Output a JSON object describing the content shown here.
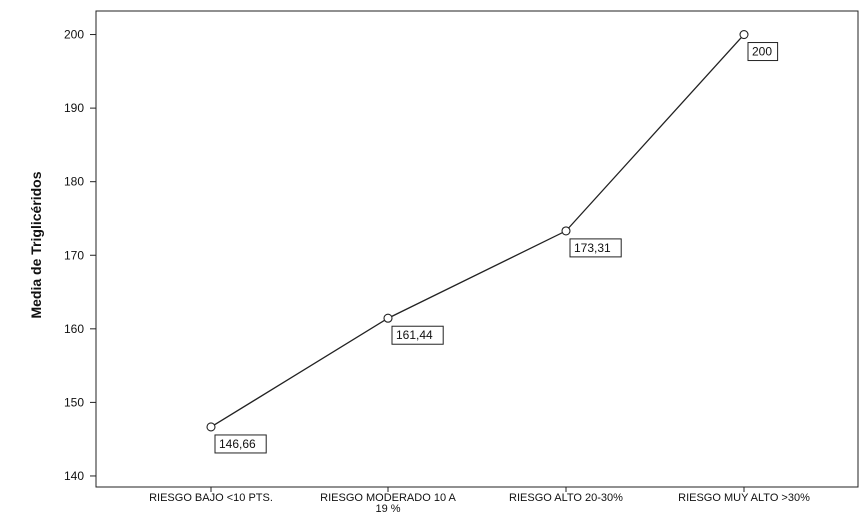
{
  "chart_data": {
    "type": "line",
    "title": "",
    "xlabel": "",
    "ylabel": "Media de Triglicéridos",
    "categories": [
      [
        "RIESGO BAJO <10 PTS."
      ],
      [
        "RIESGO MODERADO 10 A",
        "19 %"
      ],
      [
        "RIESGO ALTO 20-30%"
      ],
      [
        "RIESGO MUY ALTO >30%"
      ]
    ],
    "values": [
      146.66,
      161.44,
      173.31,
      200
    ],
    "data_labels": [
      "146,66",
      "161,44",
      "173,31",
      "200"
    ],
    "yticks": [
      "140",
      "150",
      "160",
      "170",
      "180",
      "190",
      "200"
    ],
    "ylim": [
      138.5,
      203.2
    ],
    "grid": false,
    "legend": "none",
    "colors": {
      "line": "#222222",
      "marker": "#222222",
      "axis": "#222222",
      "frame": "#222222",
      "background": "#ffffff"
    }
  }
}
